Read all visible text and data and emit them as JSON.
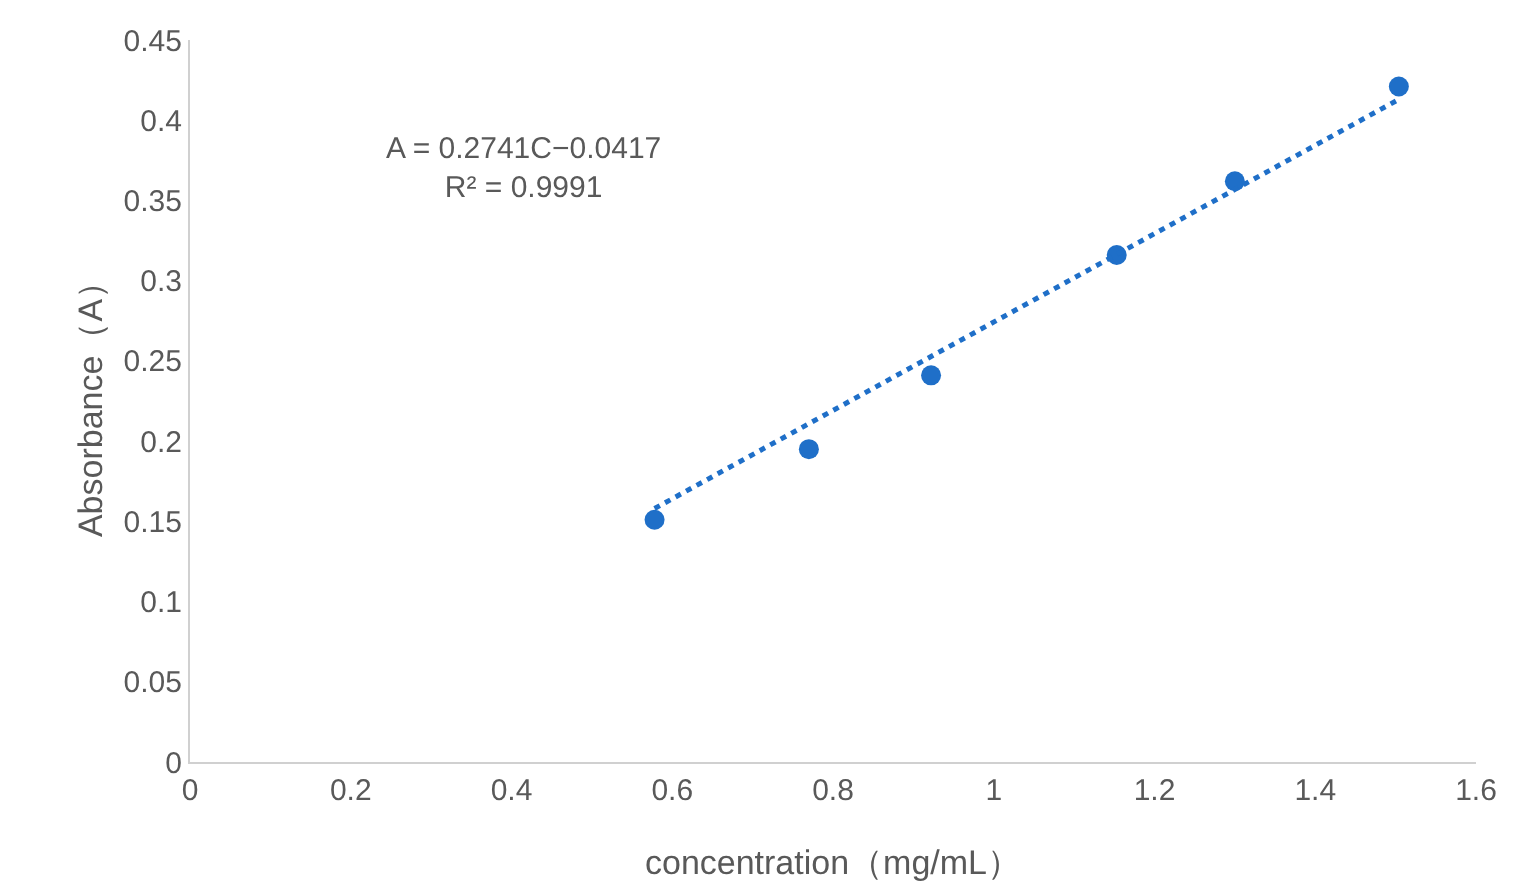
{
  "chart_data": {
    "type": "scatter",
    "xlabel": "concentration（mg/mL）",
    "ylabel": "Absorbance（A）",
    "annotations": [
      "A = 0.2741C−0.0417\nR² = 0.9991"
    ],
    "series": [
      {
        "color": "#1f6fc8",
        "marker": "circle",
        "x": [
          0.578,
          0.77,
          0.922,
          1.153,
          1.3,
          1.504
        ],
        "values": [
          0.151,
          0.195,
          0.241,
          0.316,
          0.362,
          0.421
        ]
      },
      {
        "type": "line",
        "color": "#1f6fc8",
        "marker": "none",
        "line_style": "dotted",
        "x": [
          0.578,
          1.504
        ],
        "values": [
          0.158,
          0.413
        ]
      }
    ],
    "xlim": [
      0,
      1.6
    ],
    "xticks": [
      0,
      0.2,
      0.4,
      0.6,
      0.8,
      1,
      1.2,
      1.4,
      1.6
    ],
    "ylim": [
      0,
      0.45
    ],
    "yticks": [
      0,
      0.05,
      0.1,
      0.15,
      0.2,
      0.25,
      0.3,
      0.35,
      0.4,
      0.45
    ],
    "grid": false
  }
}
